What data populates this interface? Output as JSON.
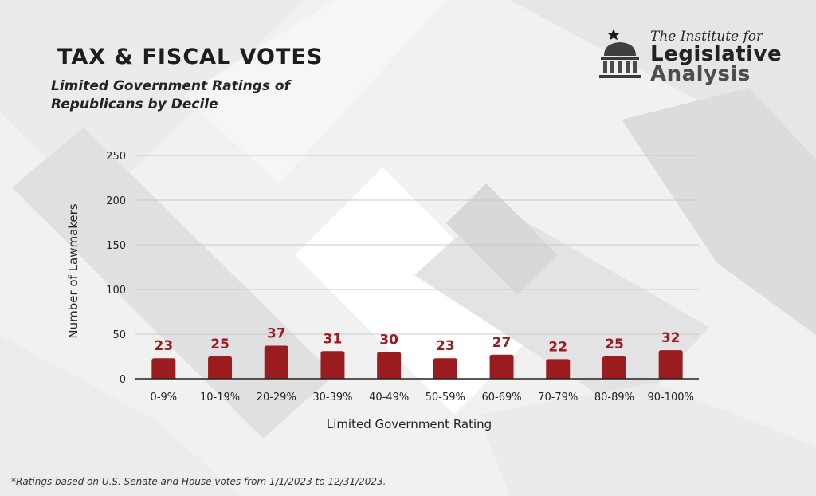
{
  "title": "TAX & FISCAL VOTES",
  "subtitle_line1": "Limited Government Ratings of",
  "subtitle_line2": "Republicans by Decile",
  "footnote": "*Ratings based on U.S. Senate and House votes from 1/1/2023 to 12/31/2023.",
  "logo": {
    "line1": "The Institute for",
    "line2": "Legislative",
    "line3": "Analysis",
    "icon": "capitol-building-icon"
  },
  "colors": {
    "bar": "#9b1c1f",
    "data_label": "#9b1c1f",
    "grid": "#c9c9c9",
    "axis": "#222222"
  },
  "chart_data": {
    "type": "bar",
    "xlabel": "Limited Government Rating",
    "ylabel": "Number of Lawmakers",
    "categories": [
      "0-9%",
      "10-19%",
      "20-29%",
      "30-39%",
      "40-49%",
      "50-59%",
      "60-69%",
      "70-79%",
      "80-89%",
      "90-100%"
    ],
    "values": [
      23,
      25,
      37,
      31,
      30,
      23,
      27,
      22,
      25,
      32
    ],
    "ylim": [
      0,
      250
    ],
    "yticks": [
      0,
      50,
      100,
      150,
      200,
      250
    ],
    "grid": true,
    "data_labels": true
  }
}
